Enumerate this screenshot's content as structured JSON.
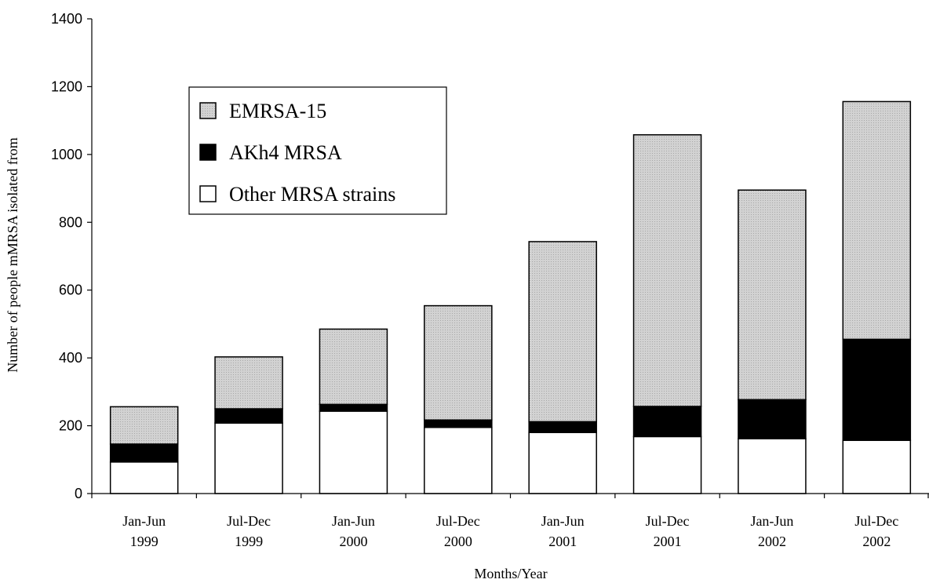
{
  "chart_data": {
    "type": "bar",
    "stacked": true,
    "categories": [
      [
        "Jan-Jun",
        "1999"
      ],
      [
        "Jul-Dec",
        "1999"
      ],
      [
        "Jan-Jun",
        "2000"
      ],
      [
        "Jul-Dec",
        "2000"
      ],
      [
        "Jan-Jun",
        "2001"
      ],
      [
        "Jul-Dec",
        "2001"
      ],
      [
        "Jan-Jun",
        "2002"
      ],
      [
        "Jul-Dec",
        "2002"
      ]
    ],
    "series": [
      {
        "name": "Other MRSA strains",
        "values": [
          93,
          208,
          243,
          195,
          180,
          168,
          162,
          157
        ],
        "color": "#ffffff",
        "pattern": "none"
      },
      {
        "name": "AKh4 MRSA",
        "values": [
          53,
          42,
          20,
          22,
          32,
          89,
          115,
          298
        ],
        "color": "#000000",
        "pattern": "none"
      },
      {
        "name": "EMRSA-15",
        "values": [
          110,
          153,
          222,
          337,
          531,
          801,
          618,
          701
        ],
        "color": "#d0d0d0",
        "pattern": "dotted"
      }
    ],
    "legend_order": [
      "EMRSA-15",
      "AKh4 MRSA",
      "Other MRSA strains"
    ],
    "legend_position": "top-left",
    "xlabel": "Months/Year",
    "ylabel": "Number of people mMRSA isolated from",
    "ylim": [
      0,
      1400
    ],
    "yticks": [
      0,
      200,
      400,
      600,
      800,
      1000,
      1200,
      1400
    ],
    "grid": false
  }
}
